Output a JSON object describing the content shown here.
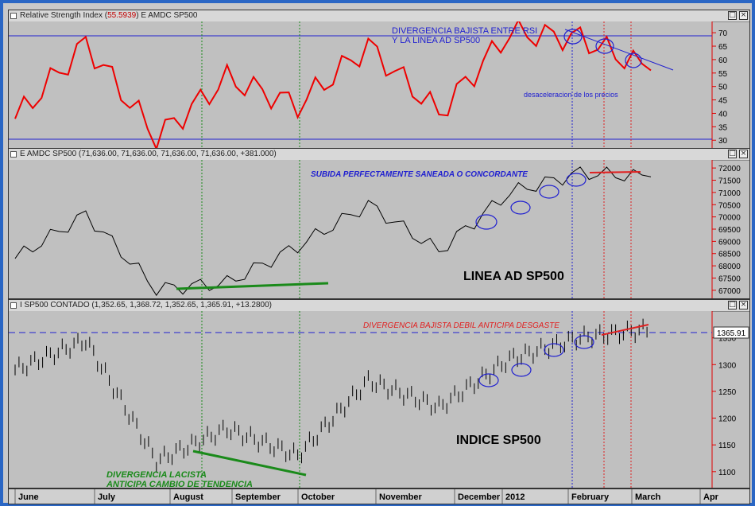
{
  "panels": {
    "rsi": {
      "title_prefix": "Relative Strength Index (",
      "title_value": "55.5939",
      "title_suffix": ") E AMDC SP500"
    },
    "ad": {
      "title": "E AMDC SP500 (71,636.00, 71,636.00, 71,636.00, 71,636.00, +381.000)"
    },
    "price": {
      "title": "I SP500 CONTADO (1,352.65, 1,368.72, 1,352.65, 1,365.91, +13.2800)",
      "last_label": "1365.91"
    }
  },
  "window_buttons": {
    "restore": "□",
    "close": "×"
  },
  "time_axis": [
    "June",
    "July",
    "August",
    "September",
    "October",
    "November",
    "December",
    "2012",
    "February",
    "March",
    "Apr"
  ],
  "annotations": {
    "rsi_div_line1": "DIVERGENCIA BAJISTA ENTRE RSI",
    "rsi_div_line2": "Y LA LINEA AD SP500",
    "rsi_decel": "desaceleracion de los precios",
    "ad_subida": "SUBIDA PERFECTAMENTE SANEADA O CONCORDANTE",
    "ad_label": "LINEA AD SP500",
    "price_div": "DIVERGENCIA BAJISTA DEBIL ANTICIPA DESGASTE",
    "price_label": "INDICE SP500",
    "price_lacista1": "DIVERGENCIA LACISTA",
    "price_lacista2": "ANTICIPA CAMBIO DE TENDENCIA"
  },
  "colors": {
    "rsi_line": "#ee0000",
    "ad_line": "#000000",
    "price_bars": "#000000",
    "axis_red": "#e00000",
    "blue": "#2020d0",
    "green": "#1a8a1a",
    "red_annot": "#e02020"
  },
  "chart_data": [
    {
      "type": "line",
      "title": "Relative Strength Index",
      "ylim": [
        28,
        73
      ],
      "y_ticks": [
        30,
        35,
        40,
        45,
        50,
        55,
        60,
        65,
        70
      ],
      "reference_lines": [
        70,
        30
      ],
      "x": [
        "Jun",
        "Jul",
        "Aug",
        "Sep",
        "Oct",
        "Nov",
        "Dec",
        "Jan 2012",
        "Feb",
        "Mar"
      ],
      "values": [
        38,
        66,
        31,
        53,
        43,
        65,
        40,
        70,
        68,
        56
      ]
    },
    {
      "type": "line",
      "title": "E AMDC SP500",
      "ylim": [
        66800,
        72200
      ],
      "y_ticks": [
        67000,
        67500,
        68000,
        68500,
        69000,
        69500,
        70000,
        70500,
        71000,
        71500,
        72000
      ],
      "x": [
        "Jun",
        "Jul",
        "Aug",
        "Sep",
        "Oct",
        "Nov",
        "Dec",
        "Jan 2012",
        "Feb",
        "Mar"
      ],
      "values": [
        68300,
        70100,
        67050,
        67300,
        68800,
        70500,
        68600,
        71000,
        71800,
        71636
      ]
    },
    {
      "type": "bar",
      "title": "I SP500 CONTADO",
      "ylim": [
        1070,
        1400
      ],
      "y_ticks": [
        1100,
        1150,
        1200,
        1250,
        1300,
        1350
      ],
      "reference_lines": [
        1365.91
      ],
      "x": [
        "Jun",
        "Jul",
        "Aug",
        "Sep",
        "Oct",
        "Nov",
        "Dec",
        "Jan 2012",
        "Feb",
        "Mar"
      ],
      "values": [
        1290,
        1345,
        1120,
        1180,
        1130,
        1270,
        1220,
        1310,
        1350,
        1365.91
      ]
    }
  ]
}
